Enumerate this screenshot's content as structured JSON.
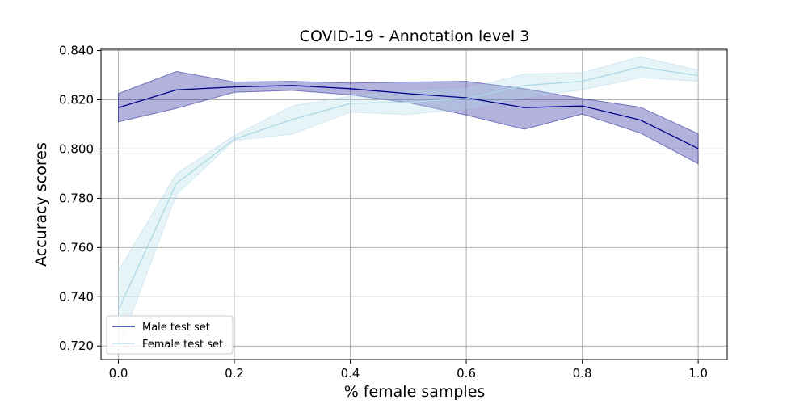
{
  "chart_data": {
    "type": "line",
    "title": "COVID-19 - Annotation level 3",
    "xlabel": "% female samples",
    "ylabel": "Accuracy scores",
    "xlim": [
      -0.03,
      1.05
    ],
    "ylim": [
      0.7145,
      0.8405
    ],
    "xticks": [
      0.0,
      0.2,
      0.4,
      0.6,
      0.8,
      1.0
    ],
    "xtick_labels": [
      "0.0",
      "0.2",
      "0.4",
      "0.6",
      "0.8",
      "1.0"
    ],
    "yticks": [
      0.72,
      0.74,
      0.76,
      0.78,
      0.8,
      0.82,
      0.84
    ],
    "ytick_labels": [
      "0.720",
      "0.740",
      "0.760",
      "0.780",
      "0.800",
      "0.820",
      "0.840"
    ],
    "grid": true,
    "legend_position": "lower-left",
    "x": [
      0.0,
      0.1,
      0.2,
      0.3,
      0.4,
      0.5,
      0.6,
      0.7,
      0.8,
      0.9,
      1.0
    ],
    "series": [
      {
        "name": "Male test set",
        "color": "#00008b",
        "band_color": "#00008b",
        "values": [
          0.8168,
          0.824,
          0.8252,
          0.8258,
          0.8245,
          0.8225,
          0.8208,
          0.8168,
          0.8175,
          0.8118,
          0.8002
        ],
        "lower": [
          0.811,
          0.8165,
          0.823,
          0.8238,
          0.822,
          0.8188,
          0.8138,
          0.808,
          0.8142,
          0.8065,
          0.794
        ],
        "upper": [
          0.8225,
          0.8315,
          0.8272,
          0.8275,
          0.8268,
          0.8272,
          0.8275,
          0.8245,
          0.8205,
          0.817,
          0.8062
        ]
      },
      {
        "name": "Female test set",
        "color": "#add8e6",
        "band_color": "#add8e6",
        "values": [
          0.7345,
          0.786,
          0.804,
          0.812,
          0.8185,
          0.819,
          0.8205,
          0.8258,
          0.8275,
          0.8333,
          0.8298
        ],
        "lower": [
          0.7185,
          0.7815,
          0.8035,
          0.806,
          0.815,
          0.814,
          0.8165,
          0.821,
          0.824,
          0.829,
          0.8275
        ],
        "upper": [
          0.7505,
          0.79,
          0.8055,
          0.8175,
          0.8215,
          0.8235,
          0.8245,
          0.8305,
          0.831,
          0.8375,
          0.832
        ]
      }
    ]
  }
}
